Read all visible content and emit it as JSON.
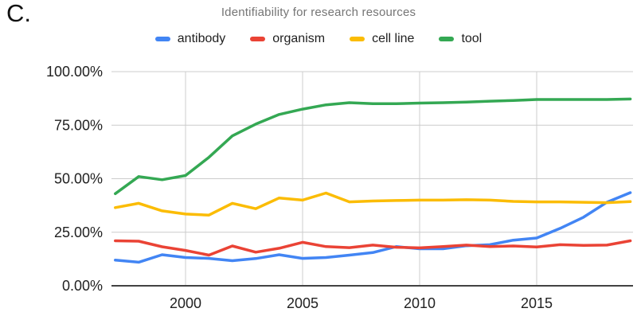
{
  "panel": {
    "label": "C."
  },
  "chart_data": {
    "type": "line",
    "title": "Identifiability for research resources",
    "xlabel": "",
    "ylabel": "",
    "x_range": [
      1997,
      2019
    ],
    "ylim": [
      0,
      100
    ],
    "grid": true,
    "legend_position": "top",
    "x_ticks": [
      2000,
      2005,
      2010,
      2015
    ],
    "y_ticks": [
      {
        "value": 0,
        "label": "0.00%"
      },
      {
        "value": 25,
        "label": "25.00%"
      },
      {
        "value": 50,
        "label": "50.00%"
      },
      {
        "value": 75,
        "label": "75.00%"
      },
      {
        "value": 100,
        "label": "100.00%"
      }
    ],
    "x": [
      1997,
      1998,
      1999,
      2000,
      2001,
      2002,
      2003,
      2004,
      2005,
      2006,
      2007,
      2008,
      2009,
      2010,
      2011,
      2012,
      2013,
      2014,
      2015,
      2016,
      2017,
      2018,
      2019
    ],
    "series": [
      {
        "name": "antibody",
        "color": "#4285F4",
        "values": [
          12.0,
          11.0,
          14.5,
          13.2,
          12.8,
          11.7,
          12.7,
          14.5,
          12.8,
          13.2,
          14.3,
          15.5,
          18.3,
          17.3,
          17.3,
          18.7,
          19.2,
          21.3,
          22.3,
          26.8,
          32.0,
          39.0,
          43.5
        ]
      },
      {
        "name": "organism",
        "color": "#EA4335",
        "values": [
          21.0,
          20.8,
          18.2,
          16.5,
          14.3,
          18.6,
          15.7,
          17.5,
          20.3,
          18.3,
          17.8,
          19.0,
          18.0,
          17.7,
          18.3,
          19.0,
          18.3,
          18.6,
          18.1,
          19.2,
          18.9,
          19.0,
          21.0
        ]
      },
      {
        "name": "cell line",
        "color": "#FBBC04",
        "values": [
          36.5,
          38.5,
          35.0,
          33.5,
          33.0,
          38.5,
          36.0,
          41.0,
          40.0,
          43.3,
          39.2,
          39.6,
          39.8,
          40.0,
          40.0,
          40.2,
          40.0,
          39.4,
          39.2,
          39.2,
          39.0,
          38.8,
          39.3
        ]
      },
      {
        "name": "tool",
        "color": "#34A853",
        "values": [
          43.0,
          51.0,
          49.5,
          51.5,
          60.0,
          70.0,
          75.5,
          80.0,
          82.5,
          84.5,
          85.5,
          85.0,
          85.0,
          85.3,
          85.5,
          85.8,
          86.2,
          86.5,
          87.0,
          87.0,
          87.0,
          87.0,
          87.2
        ]
      }
    ],
    "colors": {
      "title_text": "#757575",
      "axis_text": "#212121",
      "gridline": "#cccccc",
      "axis_line": "#424242"
    }
  }
}
